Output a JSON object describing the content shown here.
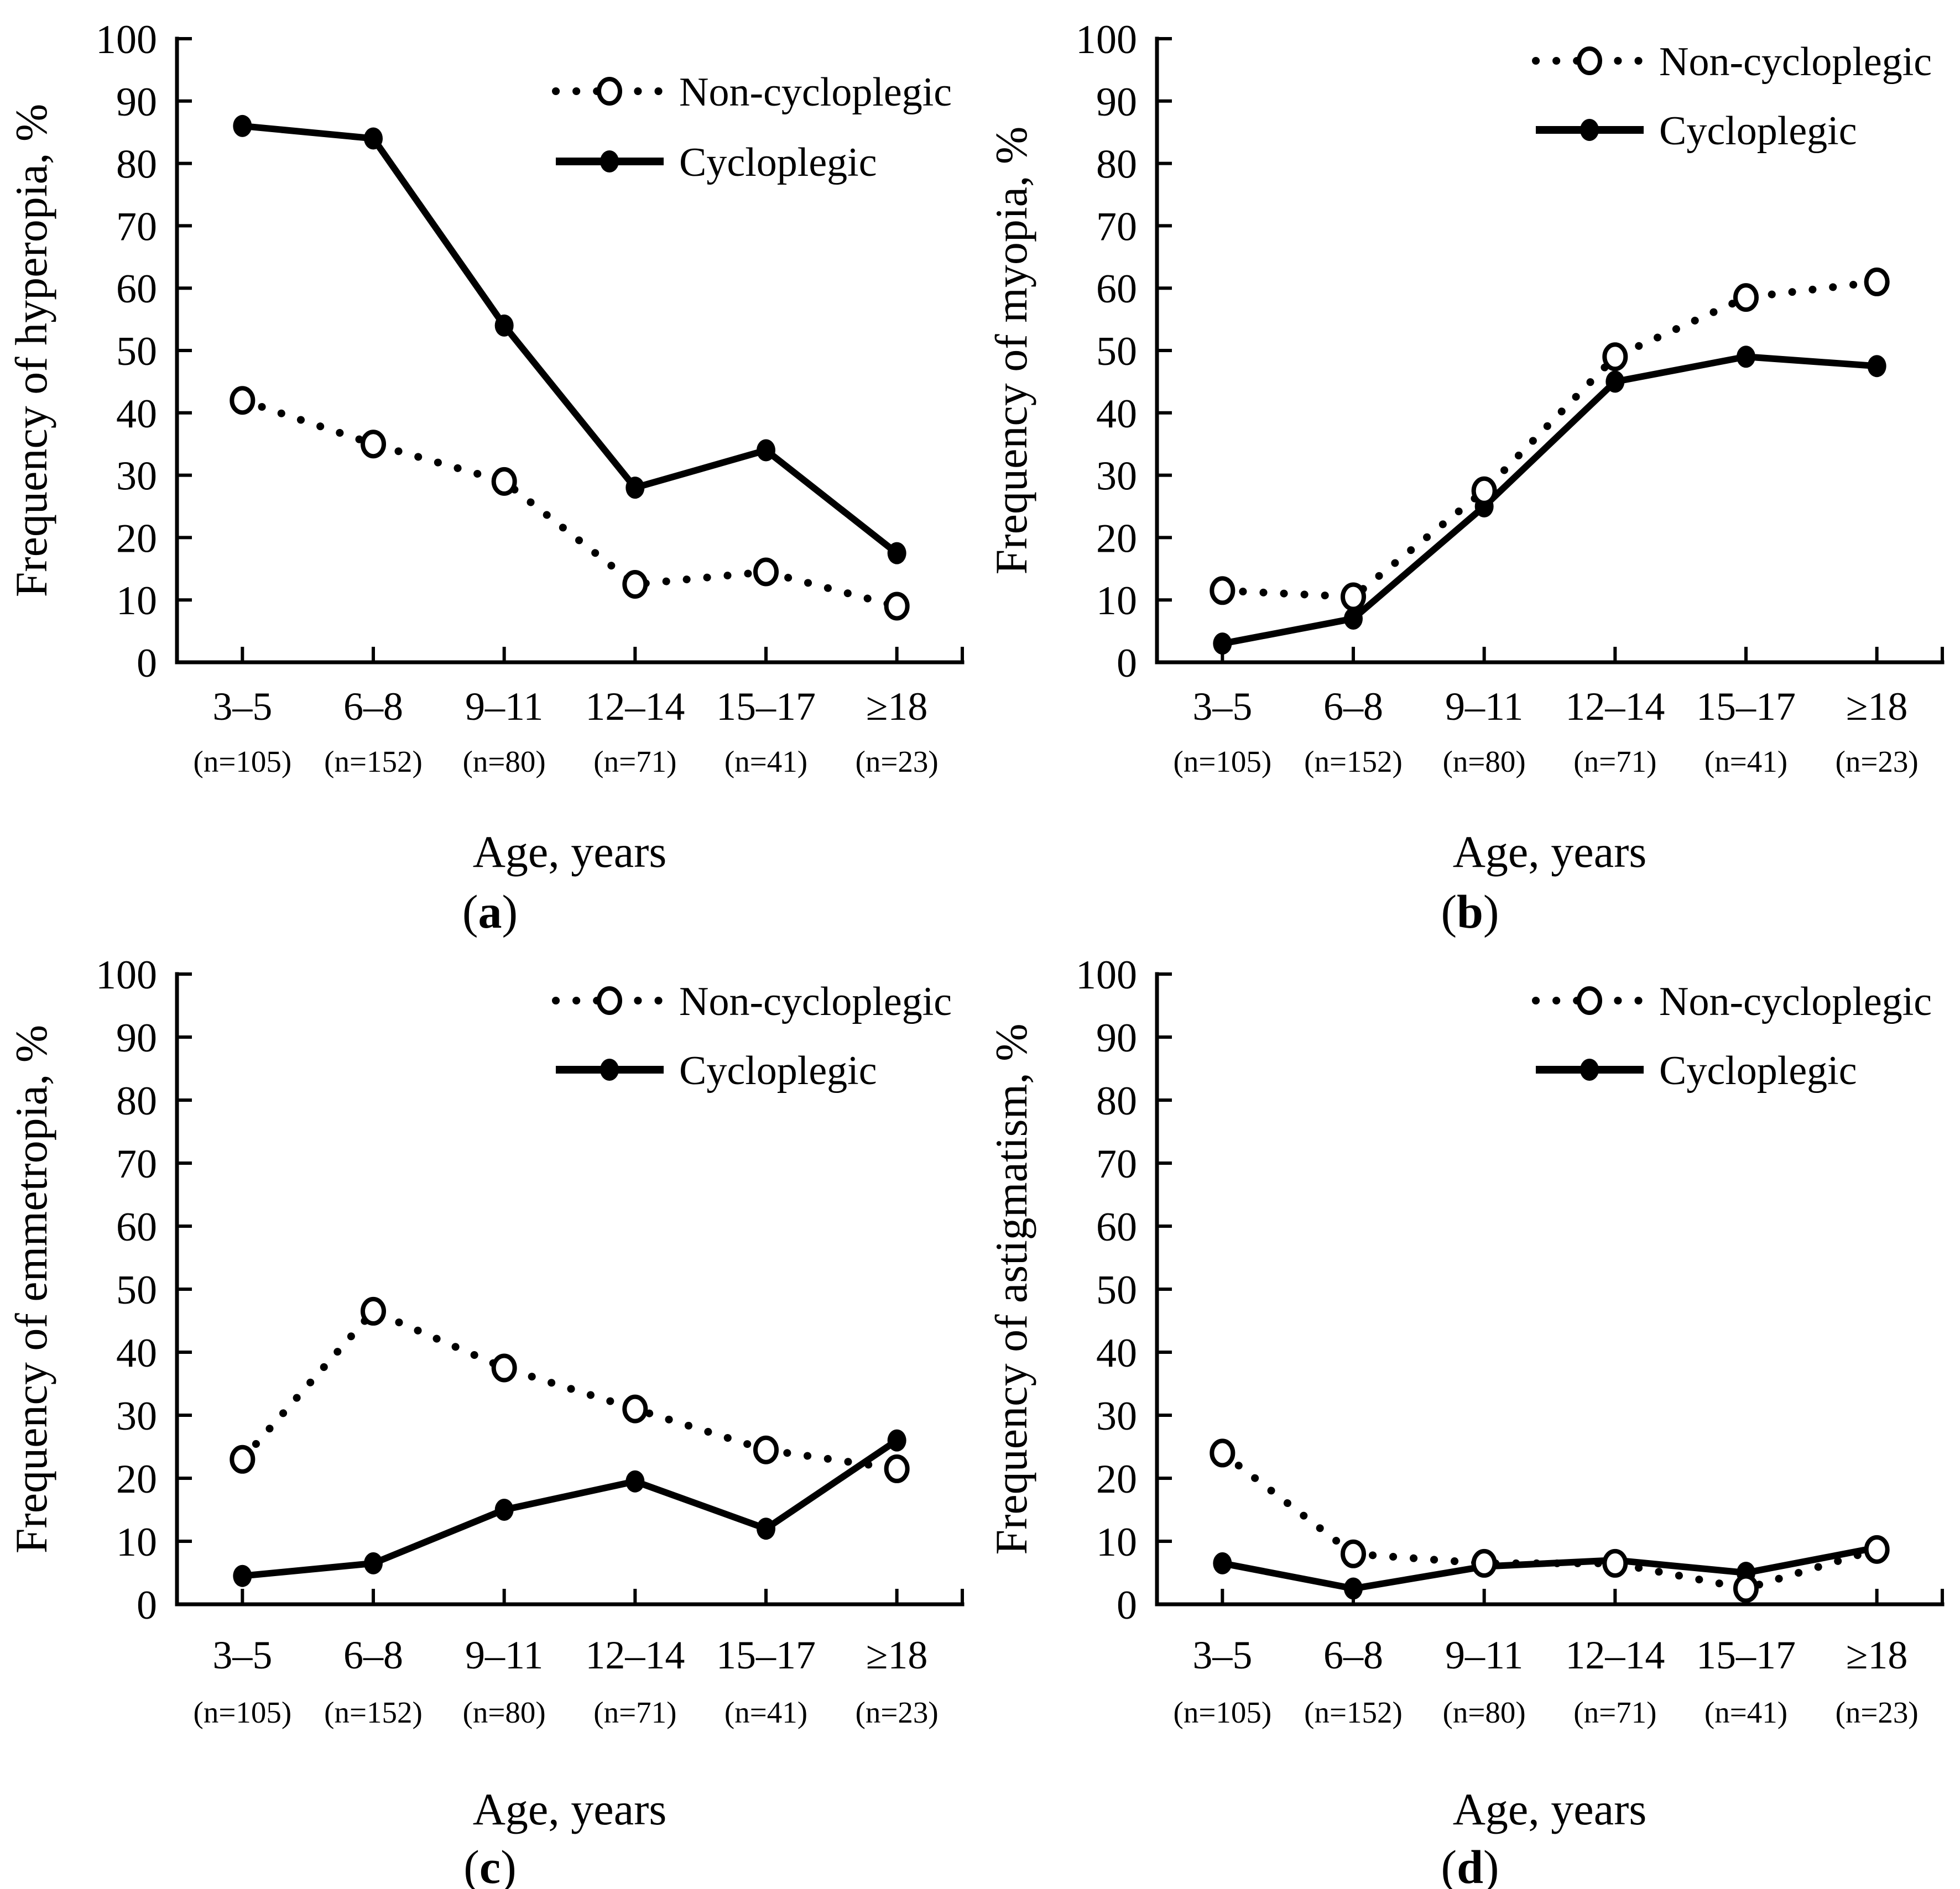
{
  "punct": {
    "open_paren": "(",
    "close_paren": ")"
  },
  "axis": {
    "yticks": [
      "0",
      "10",
      "20",
      "30",
      "40",
      "50",
      "60",
      "70",
      "80",
      "90",
      "100"
    ]
  },
  "colors": {
    "foreground": "#000000",
    "background": "#ffffff"
  },
  "chart_data": [
    {
      "type": "line",
      "panel_letter": "a",
      "title": "",
      "ylabel": "Frequency of hyperopia, %",
      "xlabel": "Age, years",
      "categories": [
        "3–5",
        "6–8",
        "9–11",
        "12–14",
        "15–17",
        "≥18"
      ],
      "n_labels": [
        "(n=105)",
        "(n=152)",
        "(n=80)",
        "(n=71)",
        "(n=41)",
        "(n=23)"
      ],
      "ylim": [
        0,
        100
      ],
      "ytick_step": 10,
      "grid": false,
      "legend_position": "top-right-inside",
      "series": [
        {
          "name": "Non-cycloplegic",
          "line": "dotted",
          "marker": "open-circle",
          "values": [
            42,
            35,
            29,
            12.5,
            14.5,
            9
          ]
        },
        {
          "name": "Cycloplegic",
          "line": "solid",
          "marker": "filled-circle",
          "values": [
            86,
            84,
            54,
            28,
            34,
            17.5
          ]
        }
      ]
    },
    {
      "type": "line",
      "panel_letter": "b",
      "title": "",
      "ylabel": "Frequency of myopia, %",
      "xlabel": "Age, years",
      "categories": [
        "3–5",
        "6–8",
        "9–11",
        "12–14",
        "15–17",
        "≥18"
      ],
      "n_labels": [
        "(n=105)",
        "(n=152)",
        "(n=80)",
        "(n=71)",
        "(n=41)",
        "(n=23)"
      ],
      "ylim": [
        0,
        100
      ],
      "ytick_step": 10,
      "grid": false,
      "legend_position": "top-right-inside",
      "series": [
        {
          "name": "Non-cycloplegic",
          "line": "dotted",
          "marker": "open-circle",
          "values": [
            11.5,
            10.5,
            27.5,
            49,
            58.5,
            61
          ]
        },
        {
          "name": "Cycloplegic",
          "line": "solid",
          "marker": "filled-circle",
          "values": [
            3,
            7,
            25,
            45,
            49,
            47.5
          ]
        }
      ]
    },
    {
      "type": "line",
      "panel_letter": "c",
      "title": "",
      "ylabel": "Frequency of emmetropia, %",
      "xlabel": "Age, years",
      "categories": [
        "3–5",
        "6–8",
        "9–11",
        "12–14",
        "15–17",
        "≥18"
      ],
      "n_labels": [
        "(n=105)",
        "(n=152)",
        "(n=80)",
        "(n=71)",
        "(n=41)",
        "(n=23)"
      ],
      "ylim": [
        0,
        100
      ],
      "ytick_step": 10,
      "grid": false,
      "legend_position": "top-right-inside",
      "series": [
        {
          "name": "Non-cycloplegic",
          "line": "dotted",
          "marker": "open-circle",
          "values": [
            23,
            46.5,
            37.5,
            31,
            24.5,
            21.5
          ]
        },
        {
          "name": "Cycloplegic",
          "line": "solid",
          "marker": "filled-circle",
          "values": [
            4.5,
            6.5,
            15,
            19.5,
            12,
            26
          ]
        }
      ]
    },
    {
      "type": "line",
      "panel_letter": "d",
      "title": "",
      "ylabel": "Frequency of astigmatism, %",
      "xlabel": "Age, years",
      "categories": [
        "3–5",
        "6–8",
        "9–11",
        "12–14",
        "15–17",
        "≥18"
      ],
      "n_labels": [
        "(n=105)",
        "(n=152)",
        "(n=80)",
        "(n=71)",
        "(n=41)",
        "(n=23)"
      ],
      "ylim": [
        0,
        100
      ],
      "ytick_step": 10,
      "grid": false,
      "legend_position": "top-right-inside",
      "series": [
        {
          "name": "Non-cycloplegic",
          "line": "dotted",
          "marker": "open-circle",
          "values": [
            24,
            8,
            6.5,
            6.5,
            2.5,
            8.7
          ]
        },
        {
          "name": "Cycloplegic",
          "line": "solid",
          "marker": "filled-circle",
          "values": [
            6.5,
            2.5,
            6,
            7,
            5,
            9
          ]
        }
      ]
    }
  ]
}
